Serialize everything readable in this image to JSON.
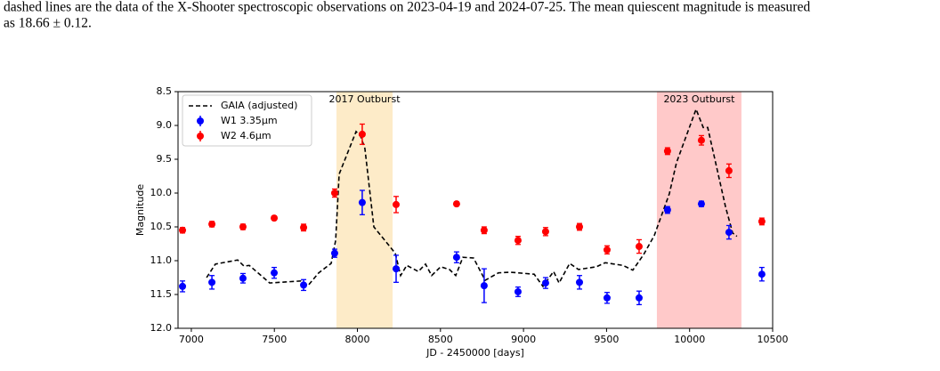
{
  "caption_lines": [
    "dashed lines are the data of the X-Shooter spectroscopic observations on 2023-04-19 and 2024-07-25. The mean quiescent magnitude is measured",
    "as 18.66 ± 0.12."
  ],
  "chart_data": {
    "type": "scatter",
    "xlabel": "JD - 2450000 [days]",
    "ylabel": "Magnitude",
    "xlim": [
      6920,
      10500
    ],
    "ylim": [
      8.5,
      12.0
    ],
    "y_inverted": true,
    "xticks": [
      7000,
      7500,
      8000,
      8500,
      9000,
      9500,
      10000,
      10500
    ],
    "yticks": [
      8.5,
      {
        "value": 9,
        "label": "9.0"
      },
      9.5,
      {
        "value": 10,
        "label": "10.0"
      },
      10.5,
      {
        "value": 11,
        "label": "11.0"
      },
      11.5,
      {
        "value": 12,
        "label": "12.0"
      }
    ],
    "legend": "upper left",
    "spans": [
      {
        "label": "2017 Outburst",
        "start": 7874,
        "end": 8212,
        "color": "#fdebc8"
      },
      {
        "label": "2023 Outburst",
        "start": 9803,
        "end": 10312,
        "color": "#ffc9c9"
      }
    ],
    "line": {
      "name": "GAIA (adjusted)",
      "color": "#000000",
      "x": [
        7092,
        7145,
        7279,
        7317,
        7349,
        7472,
        7660,
        7702,
        7767,
        7842,
        7869,
        7890,
        7992,
        8019,
        8045,
        8099,
        8228,
        8260,
        8297,
        8367,
        8410,
        8447,
        8501,
        8554,
        8592,
        8635,
        8699,
        8769,
        8849,
        8919,
        9064,
        9117,
        9181,
        9214,
        9278,
        9331,
        9439,
        9492,
        9599,
        9658,
        9723,
        9787,
        9878,
        9921,
        10039,
        10082,
        10109,
        10216,
        10259,
        10285
      ],
      "values": [
        11.25,
        11.05,
        10.99,
        11.08,
        11.07,
        11.33,
        11.3,
        11.37,
        11.18,
        11.04,
        10.7,
        9.72,
        9.09,
        9.16,
        9.34,
        10.5,
        10.89,
        11.22,
        11.07,
        11.16,
        11.05,
        11.22,
        11.09,
        11.13,
        11.22,
        10.95,
        10.96,
        11.29,
        11.18,
        11.17,
        11.2,
        11.38,
        11.16,
        11.33,
        11.04,
        11.13,
        11.09,
        11.03,
        11.07,
        11.14,
        10.91,
        10.63,
        10.01,
        9.55,
        8.76,
        9.03,
        9.03,
        10.2,
        10.59,
        10.64
      ]
    },
    "series": [
      {
        "name": "W1 3.35μm",
        "color": "#0000ff",
        "x": [
          6947,
          7124,
          7311,
          7499,
          7676,
          7863,
          8029,
          8233,
          8597,
          8763,
          8967,
          9133,
          9337,
          9503,
          9696,
          9867,
          10071,
          10237,
          10435
        ],
        "values": [
          11.38,
          11.32,
          11.26,
          11.18,
          11.36,
          10.89,
          10.14,
          11.12,
          10.95,
          11.37,
          11.46,
          11.33,
          11.32,
          11.55,
          11.55,
          10.25,
          10.16,
          10.58,
          11.2
        ],
        "errors": [
          0.08,
          0.1,
          0.07,
          0.08,
          0.08,
          0.06,
          0.18,
          0.2,
          0.08,
          0.25,
          0.07,
          0.08,
          0.1,
          0.08,
          0.1,
          0.05,
          0.04,
          0.1,
          0.1
        ]
      },
      {
        "name": "W2 4.6μm",
        "color": "#ff0000",
        "x": [
          6947,
          7124,
          7311,
          7499,
          7676,
          7863,
          8029,
          8233,
          8597,
          8763,
          8967,
          9133,
          9337,
          9503,
          9696,
          9867,
          10071,
          10237,
          10435
        ],
        "values": [
          10.55,
          10.46,
          10.5,
          10.37,
          10.51,
          10.0,
          9.13,
          10.17,
          10.16,
          10.55,
          10.7,
          10.57,
          10.5,
          10.84,
          10.79,
          9.38,
          9.22,
          9.67,
          10.42
        ],
        "errors": [
          0.04,
          0.04,
          0.04,
          0.03,
          0.05,
          0.06,
          0.15,
          0.12,
          0.03,
          0.05,
          0.06,
          0.06,
          0.05,
          0.06,
          0.1,
          0.05,
          0.07,
          0.1,
          0.05
        ]
      }
    ]
  }
}
